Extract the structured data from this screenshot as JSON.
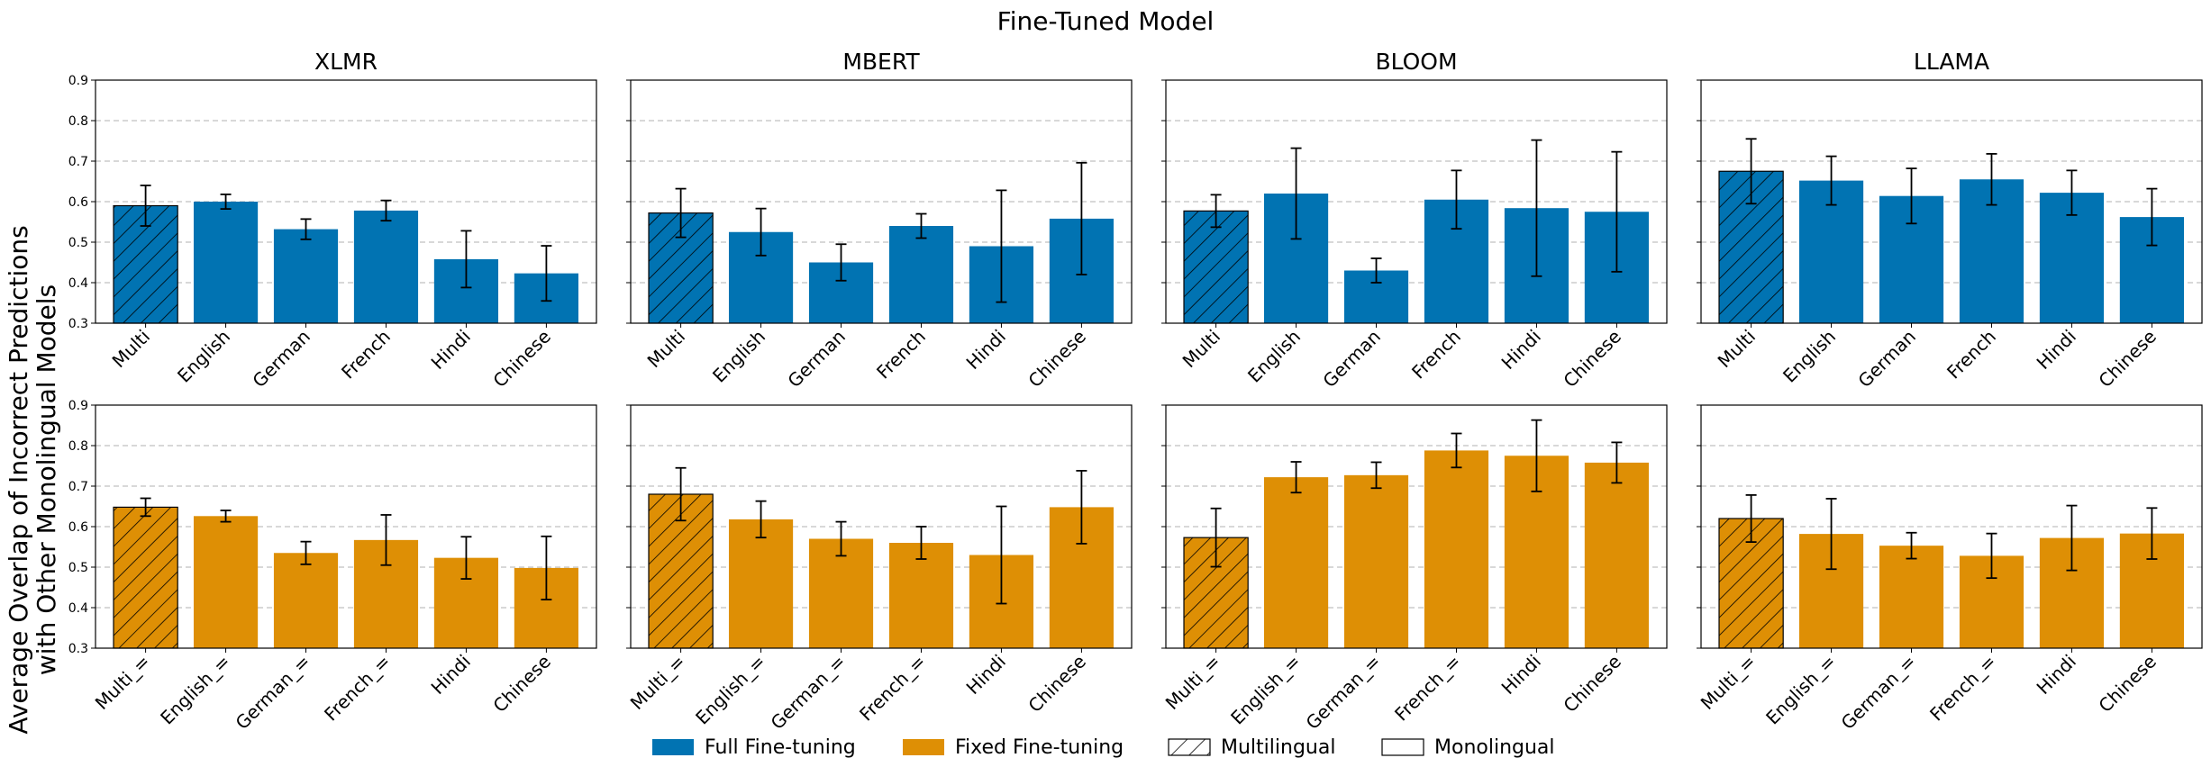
{
  "figure": {
    "suptitle": "Fine-Tuned Model",
    "ylabel_line1": "Average Overlap of Incorrect Predictions",
    "ylabel_line2": "with Other Monolingual Models"
  },
  "legend": [
    {
      "label": "Full Fine-tuning",
      "swatch": "full"
    },
    {
      "label": "Fixed Fine-tuning",
      "swatch": "fixed"
    },
    {
      "label": "Multilingual",
      "swatch": "hatch"
    },
    {
      "label": "Monolingual",
      "swatch": "plain"
    }
  ],
  "colors": {
    "full": "#0173b2",
    "fixed": "#de8f05",
    "edge": "#000000",
    "grid": "#b0b0b0"
  },
  "chart_data": [
    {
      "type": "bar",
      "title": "XLMR",
      "row": "full",
      "ylim": [
        0.3,
        0.9
      ],
      "yticks": [
        "0.3",
        "0.4",
        "0.5",
        "0.6",
        "0.7",
        "0.8",
        "0.9"
      ],
      "categories": [
        "Multi",
        "English",
        "German",
        "French",
        "Hindi",
        "Chinese"
      ],
      "values": [
        0.59,
        0.6,
        0.532,
        0.578,
        0.458,
        0.423
      ],
      "errors": [
        0.05,
        0.018,
        0.025,
        0.025,
        0.07,
        0.068
      ],
      "hatched": [
        true,
        false,
        false,
        false,
        false,
        false
      ],
      "grid": "y-dashed"
    },
    {
      "type": "bar",
      "title": "MBERT",
      "row": "full",
      "ylim": [
        0.3,
        0.9
      ],
      "yticks": [
        "0.3",
        "0.4",
        "0.5",
        "0.6",
        "0.7",
        "0.8",
        "0.9"
      ],
      "categories": [
        "Multi",
        "English",
        "German",
        "French",
        "Hindi",
        "Chinese"
      ],
      "values": [
        0.572,
        0.525,
        0.45,
        0.54,
        0.49,
        0.558
      ],
      "errors": [
        0.06,
        0.058,
        0.045,
        0.03,
        0.138,
        0.138
      ],
      "hatched": [
        true,
        false,
        false,
        false,
        false,
        false
      ],
      "grid": "y-dashed"
    },
    {
      "type": "bar",
      "title": "BLOOM",
      "row": "full",
      "ylim": [
        0.3,
        0.9
      ],
      "yticks": [
        "0.3",
        "0.4",
        "0.5",
        "0.6",
        "0.7",
        "0.8",
        "0.9"
      ],
      "categories": [
        "Multi",
        "English",
        "German",
        "French",
        "Hindi",
        "Chinese"
      ],
      "values": [
        0.577,
        0.62,
        0.43,
        0.605,
        0.584,
        0.575
      ],
      "errors": [
        0.04,
        0.112,
        0.03,
        0.072,
        0.168,
        0.148
      ],
      "hatched": [
        true,
        false,
        false,
        false,
        false,
        false
      ],
      "grid": "y-dashed"
    },
    {
      "type": "bar",
      "title": "LLAMA",
      "row": "full",
      "ylim": [
        0.3,
        0.9
      ],
      "yticks": [
        "0.3",
        "0.4",
        "0.5",
        "0.6",
        "0.7",
        "0.8",
        "0.9"
      ],
      "categories": [
        "Multi",
        "English",
        "German",
        "French",
        "Hindi",
        "Chinese"
      ],
      "values": [
        0.675,
        0.652,
        0.614,
        0.655,
        0.622,
        0.562
      ],
      "errors": [
        0.08,
        0.06,
        0.068,
        0.063,
        0.055,
        0.07
      ],
      "hatched": [
        true,
        false,
        false,
        false,
        false,
        false
      ],
      "grid": "y-dashed"
    },
    {
      "type": "bar",
      "title": "",
      "row": "fixed",
      "ylim": [
        0.3,
        0.9
      ],
      "yticks": [
        "0.3",
        "0.4",
        "0.5",
        "0.6",
        "0.7",
        "0.8",
        "0.9"
      ],
      "categories": [
        "Multi_=",
        "English_=",
        "German_=",
        "French_=",
        "Hindi",
        "Chinese"
      ],
      "values": [
        0.648,
        0.626,
        0.535,
        0.567,
        0.523,
        0.498
      ],
      "errors": [
        0.022,
        0.014,
        0.028,
        0.062,
        0.052,
        0.078
      ],
      "hatched": [
        true,
        false,
        false,
        false,
        false,
        false
      ],
      "grid": "y-dashed"
    },
    {
      "type": "bar",
      "title": "",
      "row": "fixed",
      "ylim": [
        0.3,
        0.9
      ],
      "yticks": [
        "0.3",
        "0.4",
        "0.5",
        "0.6",
        "0.7",
        "0.8",
        "0.9"
      ],
      "categories": [
        "Multi_=",
        "English_=",
        "German_=",
        "French_=",
        "Hindi",
        "Chinese"
      ],
      "values": [
        0.68,
        0.618,
        0.57,
        0.56,
        0.53,
        0.648
      ],
      "errors": [
        0.065,
        0.045,
        0.042,
        0.04,
        0.12,
        0.09
      ],
      "hatched": [
        true,
        false,
        false,
        false,
        false,
        false
      ],
      "grid": "y-dashed"
    },
    {
      "type": "bar",
      "title": "",
      "row": "fixed",
      "ylim": [
        0.3,
        0.9
      ],
      "yticks": [
        "0.3",
        "0.4",
        "0.5",
        "0.6",
        "0.7",
        "0.8",
        "0.9"
      ],
      "categories": [
        "Multi_=",
        "English_=",
        "German_=",
        "French_=",
        "Hindi",
        "Chinese"
      ],
      "values": [
        0.573,
        0.722,
        0.727,
        0.788,
        0.775,
        0.758
      ],
      "errors": [
        0.072,
        0.038,
        0.032,
        0.042,
        0.088,
        0.05
      ],
      "hatched": [
        true,
        false,
        false,
        false,
        false,
        false
      ],
      "grid": "y-dashed"
    },
    {
      "type": "bar",
      "title": "",
      "row": "fixed",
      "ylim": [
        0.3,
        0.9
      ],
      "yticks": [
        "0.3",
        "0.4",
        "0.5",
        "0.6",
        "0.7",
        "0.8",
        "0.9"
      ],
      "categories": [
        "Multi_=",
        "English_=",
        "German_=",
        "French_=",
        "Hindi",
        "Chinese"
      ],
      "values": [
        0.62,
        0.582,
        0.553,
        0.528,
        0.572,
        0.583
      ],
      "errors": [
        0.058,
        0.087,
        0.032,
        0.055,
        0.08,
        0.063
      ],
      "hatched": [
        true,
        false,
        false,
        false,
        false,
        false
      ],
      "grid": "y-dashed"
    }
  ]
}
